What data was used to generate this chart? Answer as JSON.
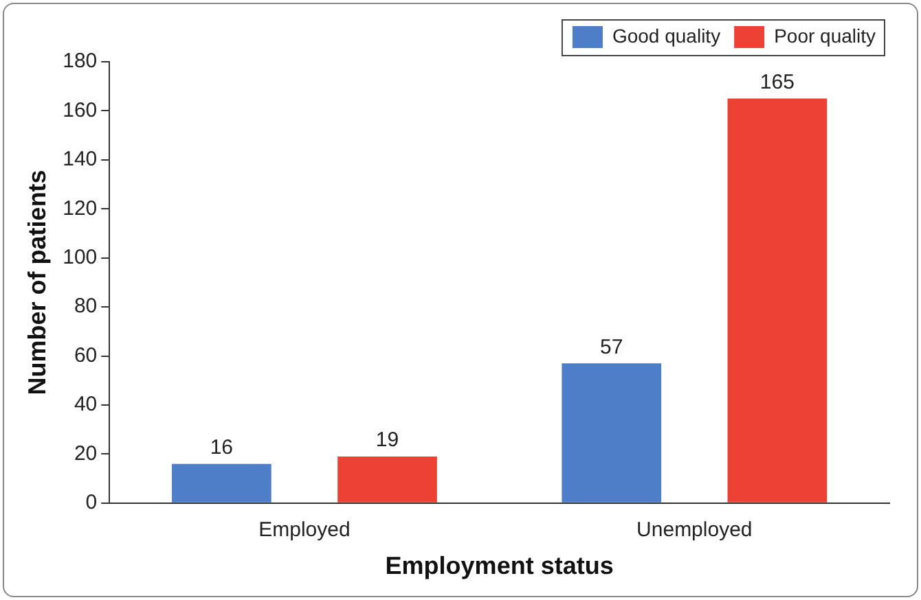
{
  "chart_data": {
    "type": "bar",
    "xlabel": "Employment status",
    "ylabel": "Number of patients",
    "categories": [
      "Employed",
      "Unemployed"
    ],
    "series": [
      {
        "name": "Good quality",
        "color": "#4f7ec8",
        "values": [
          16,
          57
        ]
      },
      {
        "name": "Poor quality",
        "color": "#ee4136",
        "values": [
          19,
          165
        ]
      }
    ],
    "ylim": [
      0,
      180
    ],
    "yticks": [
      0,
      20,
      40,
      60,
      80,
      100,
      120,
      140,
      160,
      180
    ],
    "grid": false,
    "legend": "top right",
    "data_labels": true
  }
}
